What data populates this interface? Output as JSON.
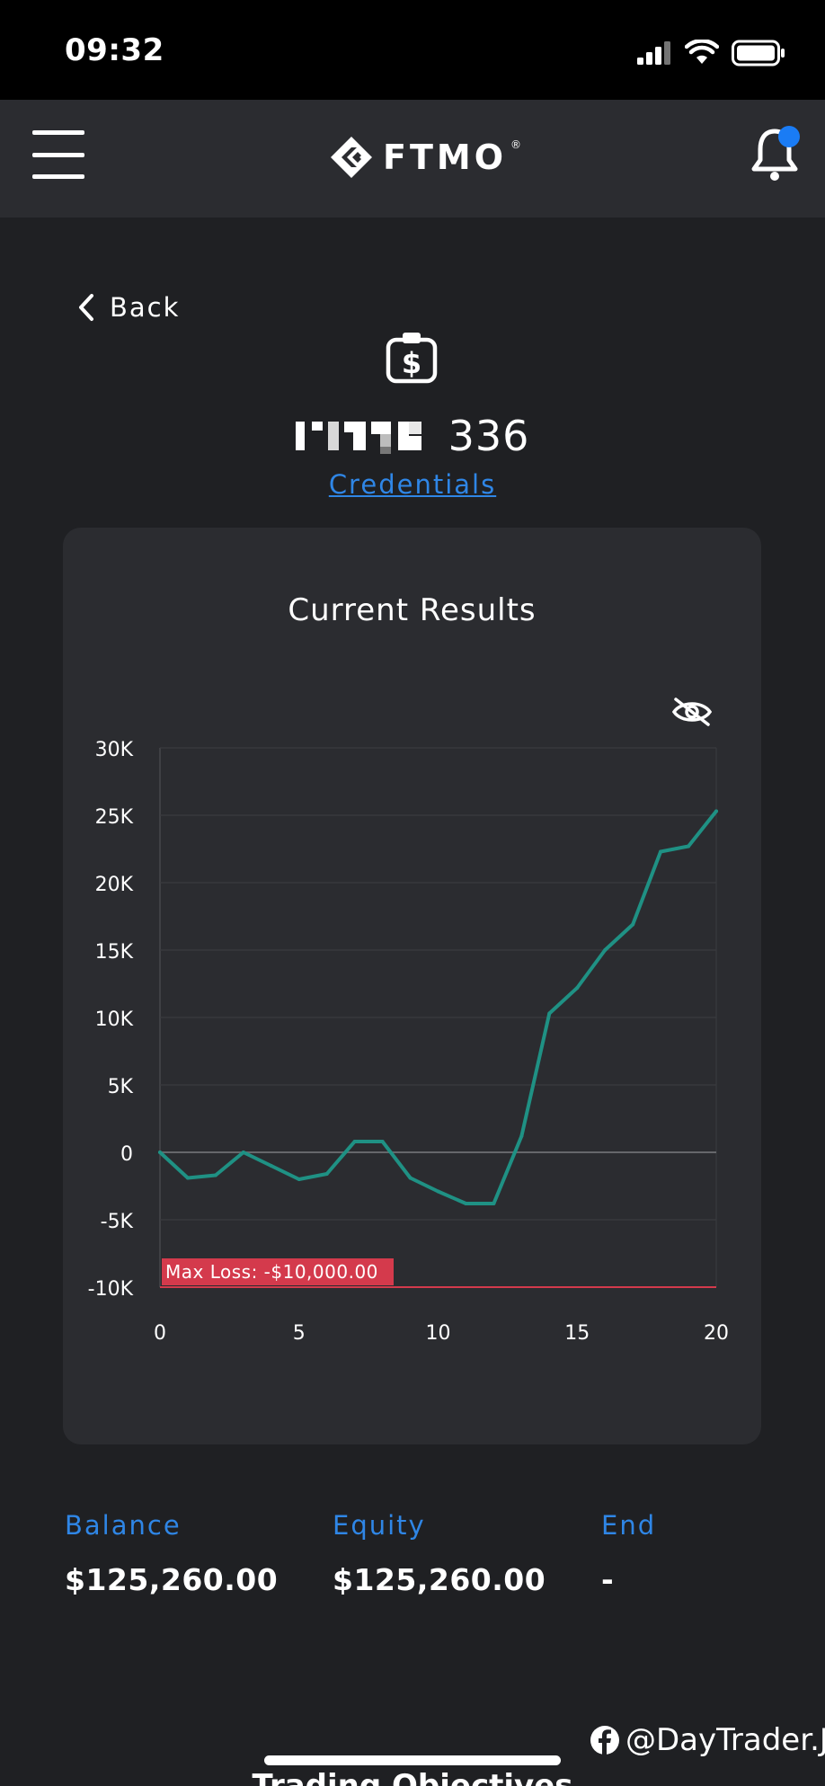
{
  "status_bar": {
    "time": "09:32"
  },
  "header": {
    "logo_text": "FTMO",
    "logo_reg": "®"
  },
  "nav": {
    "back_label": "Back"
  },
  "account": {
    "id_visible_suffix": "336",
    "credentials_label": "Credentials"
  },
  "chart_card": {
    "title": "Current Results"
  },
  "chart_data": {
    "type": "line",
    "title": "Current Results",
    "xlabel": "",
    "ylabel": "",
    "x": [
      0,
      1,
      2,
      3,
      4,
      5,
      6,
      7,
      8,
      9,
      10,
      11,
      12,
      13,
      14,
      15,
      16,
      17,
      18,
      19,
      20
    ],
    "series": [
      {
        "values": [
          0,
          -1900,
          -1700,
          0,
          -1000,
          -2000,
          -1600,
          800,
          800,
          -1900,
          -2900,
          -3800,
          -3800,
          1200,
          10300,
          12200,
          15000,
          16900,
          22300,
          22700,
          25300
        ]
      }
    ],
    "x_ticks": [
      0,
      5,
      10,
      15,
      20
    ],
    "y_ticks": [
      30000,
      25000,
      20000,
      15000,
      10000,
      5000,
      0,
      -5000,
      -10000
    ],
    "y_tick_labels": [
      "30K",
      "25K",
      "20K",
      "15K",
      "10K",
      "5K",
      "0",
      "-5K",
      "-10K"
    ],
    "x_tick_labels": [
      "0",
      "5",
      "10",
      "15",
      "20"
    ],
    "xlim": [
      0,
      20
    ],
    "ylim": [
      -10000,
      30000
    ],
    "grid": true,
    "line_color": "#1f9184",
    "max_loss": {
      "value": -10000,
      "label": "Max Loss: -$10,000.00",
      "color": "#d43a4c"
    }
  },
  "stats": [
    {
      "label": "Balance",
      "value": "$125,260.00"
    },
    {
      "label": "Equity",
      "value": "$125,260.00"
    },
    {
      "label": "End",
      "value": "-"
    }
  ],
  "watermark": {
    "text": "@DayTrader.J"
  },
  "next_section": {
    "heading": "Trading Objectives"
  }
}
